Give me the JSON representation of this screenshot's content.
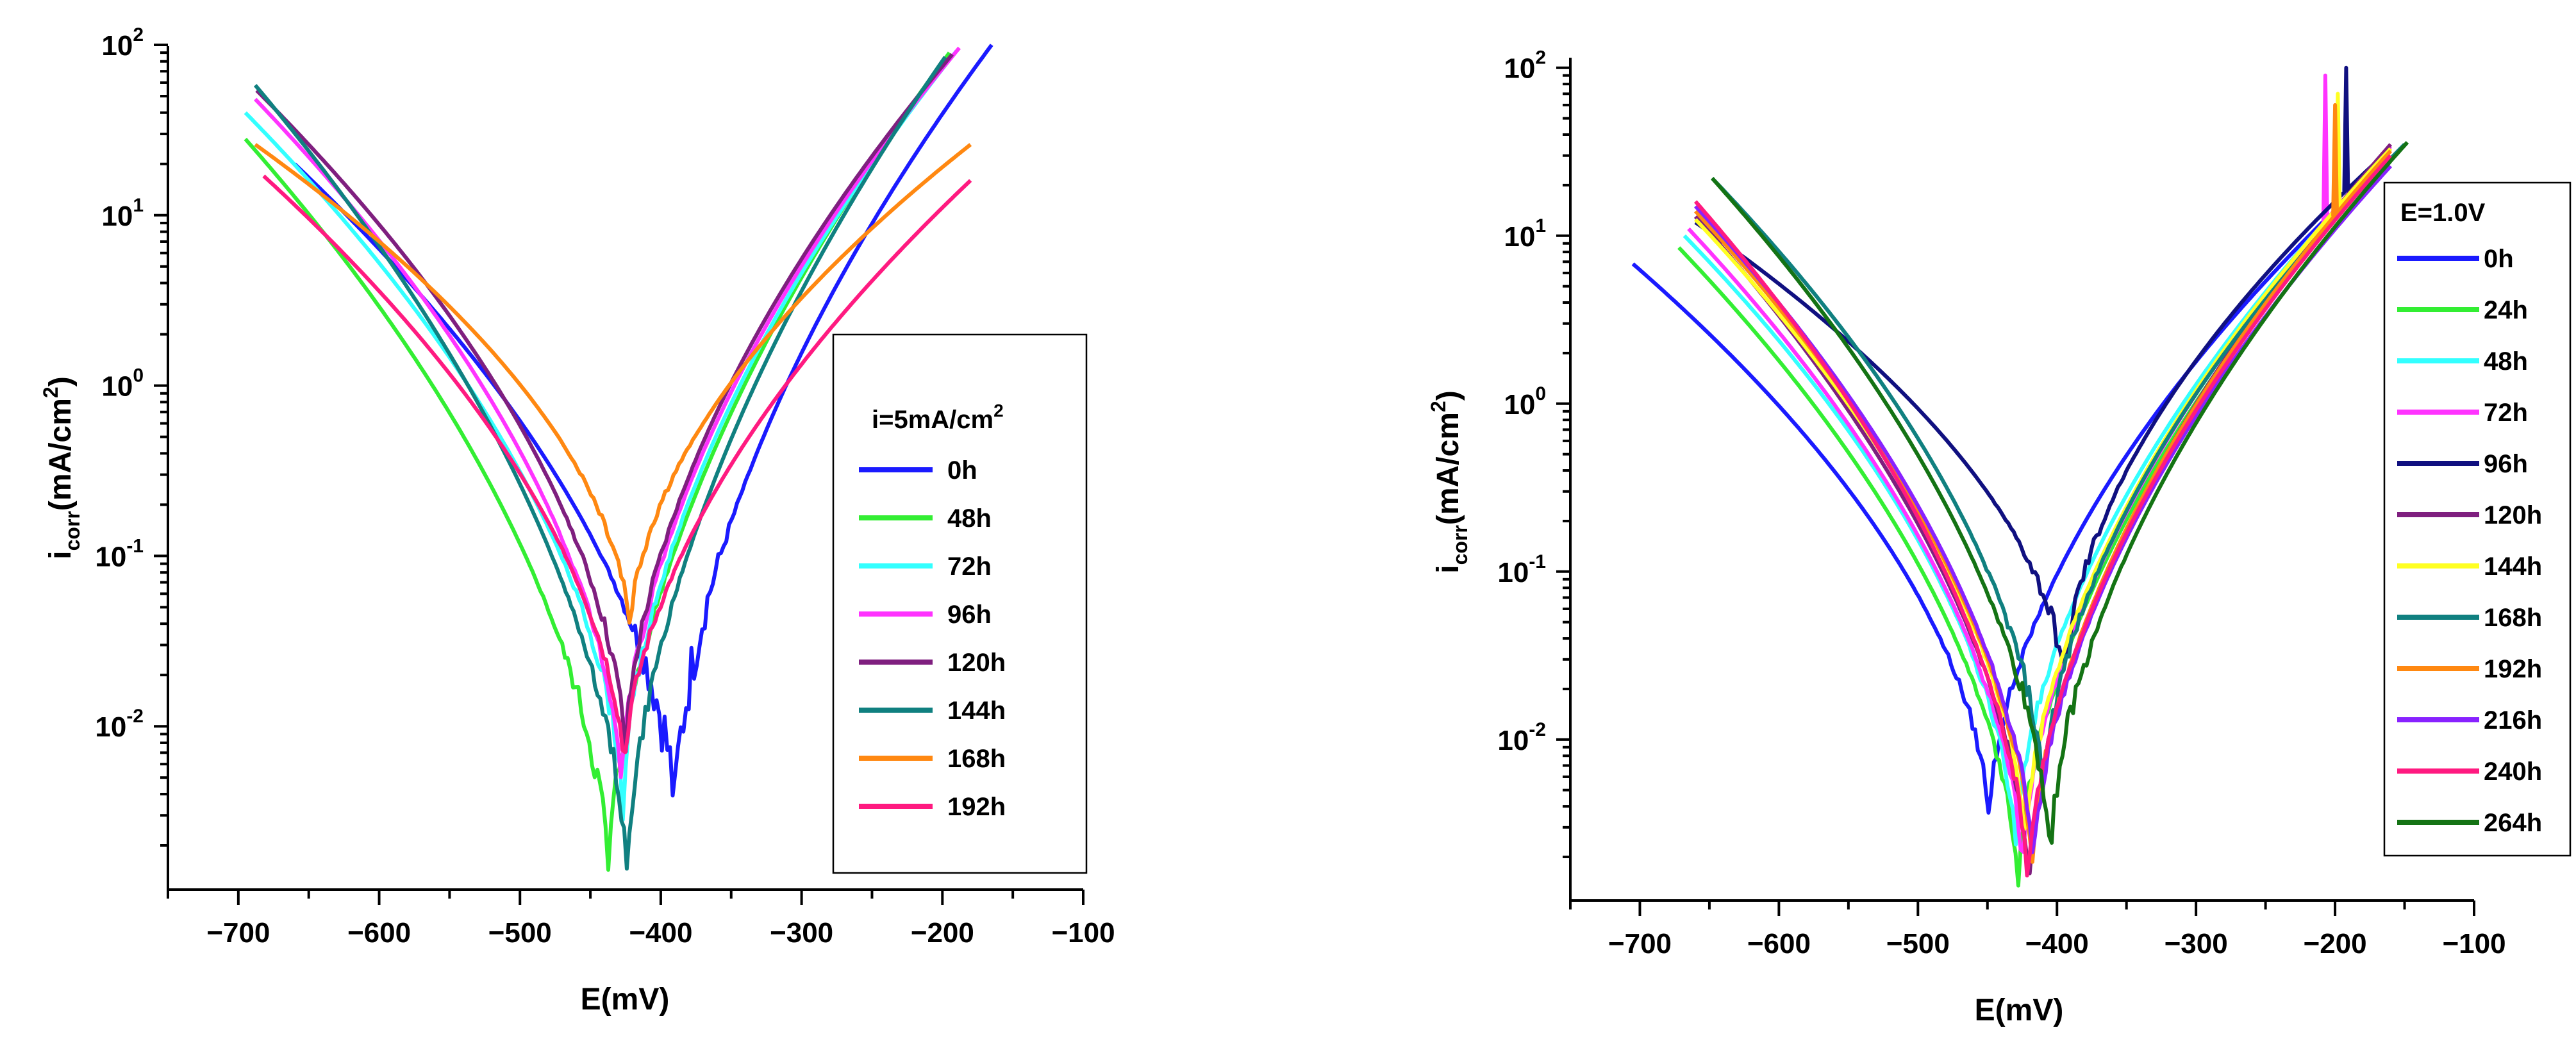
{
  "chart_data": [
    {
      "type": "line",
      "title": "",
      "xlabel": "E(mV)",
      "ylabel_main": "i",
      "ylabel_sub": "corr",
      "ylabel_rest": "(mA/cm",
      "ylabel_sup": "2",
      "ylabel_end": ")",
      "xlim": [
        -750,
        -100
      ],
      "ylim_log": [
        0.0011,
        100
      ],
      "x_ticks": [
        -700,
        -600,
        -500,
        -400,
        -300,
        -200,
        -100
      ],
      "x_tick_labels": [
        "−700",
        "−600",
        "−500",
        "−400",
        "−300",
        "−200",
        "−100"
      ],
      "y_ticks": [
        {
          "value": 100,
          "base": "10",
          "exp": "2"
        },
        {
          "value": 10,
          "base": "10",
          "exp": "1"
        },
        {
          "value": 1,
          "base": "10",
          "exp": "0"
        },
        {
          "value": 0.1,
          "base": "10",
          "exp": "-1"
        },
        {
          "value": 0.01,
          "base": "10",
          "exp": "-2"
        }
      ],
      "legend": {
        "position": "right",
        "title_main": "i=5mA/cm",
        "title_sup": "2"
      },
      "series": [
        {
          "name": "0h",
          "color": "#1a1aff",
          "ecorr": -390,
          "imin": 0.0027,
          "start": [
            -660,
            20
          ],
          "end": [
            -165,
            100
          ],
          "noise": 0.4
        },
        {
          "name": "48h",
          "color": "#33ee33",
          "ecorr": -437,
          "imin": 0.0011,
          "start": [
            -695,
            28
          ],
          "end": [
            -195,
            90
          ],
          "noise": 0.25
        },
        {
          "name": "72h",
          "color": "#33ffff",
          "ecorr": -427,
          "imin": 0.003,
          "start": [
            -695,
            40
          ],
          "end": [
            -190,
            92
          ],
          "noise": 0.15
        },
        {
          "name": "96h",
          "color": "#ff33ff",
          "ecorr": -428,
          "imin": 0.004,
          "start": [
            -688,
            48
          ],
          "end": [
            -188,
            96
          ],
          "noise": 0.12
        },
        {
          "name": "120h",
          "color": "#7f1f7f",
          "ecorr": -425,
          "imin": 0.006,
          "start": [
            -687,
            54
          ],
          "end": [
            -193,
            88
          ],
          "noise": 0.12
        },
        {
          "name": "144h",
          "color": "#108080",
          "ecorr": -424,
          "imin": 0.0011,
          "start": [
            -688,
            58
          ],
          "end": [
            -198,
            85
          ],
          "noise": 0.15
        },
        {
          "name": "168h",
          "color": "#ff8811",
          "ecorr": -422,
          "imin": 0.035,
          "start": [
            -688,
            26
          ],
          "end": [
            -180,
            26
          ],
          "noise": 0.1
        },
        {
          "name": "192h",
          "color": "#ff1a80",
          "ecorr": -426,
          "imin": 0.005,
          "start": [
            -682,
            17
          ],
          "end": [
            -180,
            16
          ],
          "noise": 0.1
        }
      ]
    },
    {
      "type": "line",
      "title": "",
      "xlabel": "E(mV)",
      "ylabel_main": "i",
      "ylabel_sub": "corr",
      "ylabel_rest": "(mA/cm",
      "ylabel_sup": "2",
      "ylabel_end": ")",
      "xlim": [
        -750,
        -100
      ],
      "ylim_log": [
        0.0011,
        120
      ],
      "x_ticks": [
        -700,
        -600,
        -500,
        -400,
        -300,
        -200,
        -100
      ],
      "x_tick_labels": [
        "−700",
        "−600",
        "−500",
        "−400",
        "−300",
        "−200",
        "−100"
      ],
      "y_ticks": [
        {
          "value": 100,
          "base": "10",
          "exp": "2"
        },
        {
          "value": 10,
          "base": "10",
          "exp": "1"
        },
        {
          "value": 1,
          "base": "10",
          "exp": "0"
        },
        {
          "value": 0.1,
          "base": "10",
          "exp": "-1"
        },
        {
          "value": 0.01,
          "base": "10",
          "exp": "-2"
        }
      ],
      "legend": {
        "position": "right",
        "title_main": "E=1.0V",
        "title_sup": ""
      },
      "series": [
        {
          "name": "0h",
          "color": "#1a1aff",
          "ecorr": -449,
          "imin": 0.003,
          "start": [
            -705,
            6.8
          ],
          "end": [
            -205,
            13
          ],
          "noise": 0.1,
          "spike": null
        },
        {
          "name": "24h",
          "color": "#33ee33",
          "ecorr": -428,
          "imin": 0.0012,
          "start": [
            -672,
            8.5
          ],
          "end": [
            -160,
            30
          ],
          "noise": 0.1,
          "spike": null
        },
        {
          "name": "48h",
          "color": "#33ffff",
          "ecorr": -430,
          "imin": 0.002,
          "start": [
            -668,
            10
          ],
          "end": [
            -160,
            32
          ],
          "noise": 0.1,
          "spike": null
        },
        {
          "name": "72h",
          "color": "#ff33ff",
          "ecorr": -425,
          "imin": 0.0015,
          "start": [
            -665,
            11
          ],
          "end": [
            -160,
            34
          ],
          "noise": 0.1,
          "spike": [
            -207,
            90
          ]
        },
        {
          "name": "96h",
          "color": "#101080",
          "ecorr": -395,
          "imin": 0.02,
          "start": [
            -660,
            12
          ],
          "end": [
            -160,
            33
          ],
          "noise": 0.15,
          "spike": [
            -192,
            100
          ]
        },
        {
          "name": "120h",
          "color": "#7f1f7f",
          "ecorr": -420,
          "imin": 0.0012,
          "start": [
            -660,
            13
          ],
          "end": [
            -160,
            35
          ],
          "noise": 0.1,
          "spike": null
        },
        {
          "name": "144h",
          "color": "#ffff22",
          "ecorr": -423,
          "imin": 0.002,
          "start": [
            -660,
            12.5
          ],
          "end": [
            -160,
            33
          ],
          "noise": 0.1,
          "spike": [
            -198,
            70
          ]
        },
        {
          "name": "168h",
          "color": "#108080",
          "ecorr": -410,
          "imin": 0.004,
          "start": [
            -648,
            22
          ],
          "end": [
            -150,
            35
          ],
          "noise": 0.15,
          "spike": null
        },
        {
          "name": "192h",
          "color": "#ff8811",
          "ecorr": -418,
          "imin": 0.0015,
          "start": [
            -660,
            14
          ],
          "end": [
            -160,
            32
          ],
          "noise": 0.1,
          "spike": [
            -200,
            60
          ]
        },
        {
          "name": "216h",
          "color": "#8822ff",
          "ecorr": -417,
          "imin": 0.0015,
          "start": [
            -660,
            15
          ],
          "end": [
            -160,
            26
          ],
          "noise": 0.1,
          "spike": null
        },
        {
          "name": "240h",
          "color": "#ff1a80",
          "ecorr": -421,
          "imin": 0.0012,
          "start": [
            -660,
            16
          ],
          "end": [
            -160,
            30
          ],
          "noise": 0.1,
          "spike": null
        },
        {
          "name": "264h",
          "color": "#147314",
          "ecorr": -405,
          "imin": 0.0018,
          "start": [
            -648,
            22
          ],
          "end": [
            -148,
            36
          ],
          "noise": 0.2,
          "spike": null
        }
      ]
    }
  ]
}
